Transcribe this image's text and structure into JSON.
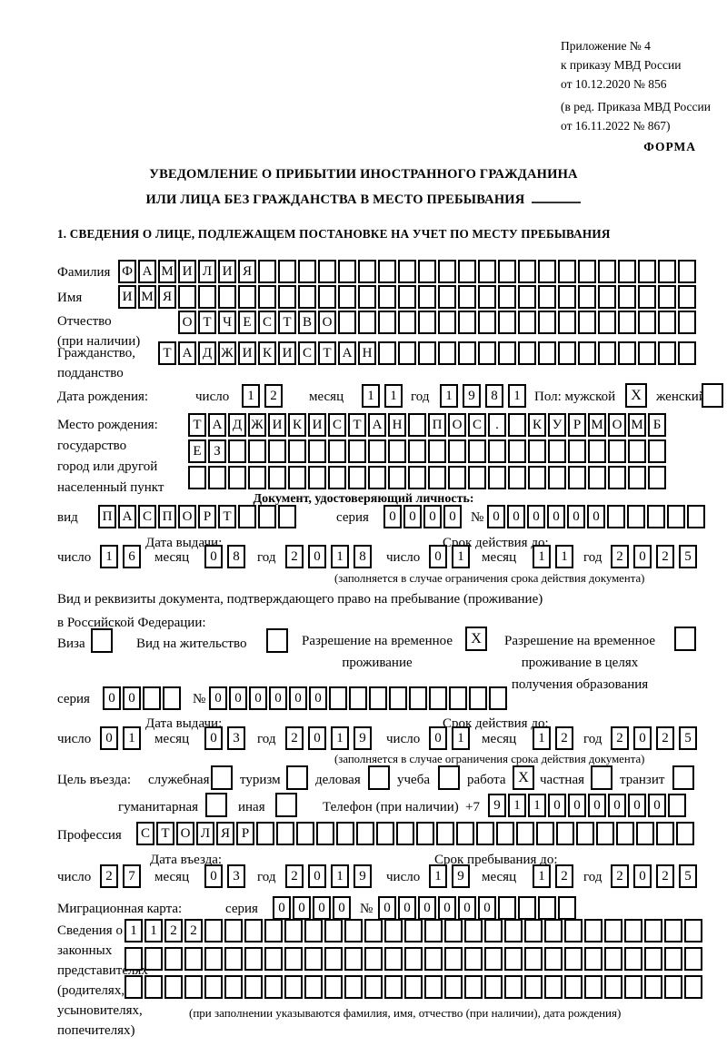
{
  "doc": {
    "appendix": [
      "Приложение № 4",
      "к приказу МВД России",
      "от 10.12.2020 № 856"
    ],
    "revision": [
      "(в ред. Приказа МВД России",
      "от 16.11.2022 № 867)"
    ],
    "forma": "ФОРМА",
    "title1": "УВЕДОМЛЕНИЕ О ПРИБЫТИИ ИНОСТРАННОГО ГРАЖДАНИНА",
    "title2": "ИЛИ ЛИЦА БЕЗ ГРАЖДАНСТВА В МЕСТО ПРЕБЫВАНИЯ",
    "section1": "1. СВЕДЕНИЯ О ЛИЦЕ, ПОДЛЕЖАЩЕМ ПОСТАНОВКЕ НА УЧЕТ ПО МЕСТУ ПРЕБЫВАНИЯ"
  },
  "labels": {
    "day": "число",
    "month": "месяц",
    "year": "год",
    "series": "серия",
    "number": "№",
    "issue_date": "Дата выдачи:",
    "valid_until": "Срок действия до:",
    "entry_date": "Дата въезда:",
    "stay_until": "Срок пребывания до:",
    "valid_note": "(заполняется в случае ограничения срока действия документа)"
  },
  "fields": {
    "surname": {
      "label": "Фамилия",
      "value": "ФАМИЛИЯ"
    },
    "firstname": {
      "label": "Имя",
      "value": "ИМЯ"
    },
    "patronymic": {
      "label1": "Отчество",
      "label2": "(при наличии)",
      "value": "ОТЧЕСТВО"
    },
    "citizenship": {
      "label1": "Гражданство,",
      "label2": "подданство",
      "value": "ТАДЖИКИСТАН"
    },
    "birth": {
      "label": "Дата рождения:",
      "day": "12",
      "month": "11",
      "year": "1981",
      "sex_label": "Пол: мужской",
      "male_mark": "X",
      "female_label": "женский",
      "female_mark": ""
    },
    "birthplace": {
      "label1": "Место рождения:",
      "label2": "государство",
      "label3": "город или другой",
      "label4": "населенный пункт",
      "row1": "ТАДЖИКИСТАН ПОС. КУРМОМБ",
      "row2": "ЕЗ",
      "row3": ""
    },
    "iddoc": {
      "heading": "Документ, удостоверяющий личность:",
      "kind_label": "вид",
      "kind": "ПАСПОРТ",
      "series": "0000",
      "number": "000000",
      "issue": {
        "day": "16",
        "month": "08",
        "year": "2018"
      },
      "valid": {
        "day": "01",
        "month": "11",
        "year": "2025"
      }
    },
    "staydoc": {
      "intro1": "Вид и реквизиты документа, подтверждающего право на пребывание (проживание)",
      "intro2": "в Российской Федерации:",
      "options": [
        {
          "lines": [
            "Виза"
          ],
          "mark": ""
        },
        {
          "lines": [
            "Вид на жительство"
          ],
          "mark": ""
        },
        {
          "lines": [
            "Разрешение на временное",
            "проживание"
          ],
          "mark": "X"
        },
        {
          "lines": [
            "Разрешение на временное",
            "проживание в целях",
            "получения образования"
          ],
          "mark": ""
        }
      ],
      "series": "00",
      "number": "000000",
      "issue": {
        "day": "01",
        "month": "03",
        "year": "2019"
      },
      "valid": {
        "day": "01",
        "month": "12",
        "year": "2025"
      }
    },
    "purpose": {
      "label": "Цель въезда:",
      "options": [
        {
          "label": "служебная",
          "mark": ""
        },
        {
          "label": "туризм",
          "mark": ""
        },
        {
          "label": "деловая",
          "mark": ""
        },
        {
          "label": "учеба",
          "mark": ""
        },
        {
          "label": "работа",
          "mark": "X"
        },
        {
          "label": "частная",
          "mark": ""
        },
        {
          "label": "транзит",
          "mark": ""
        },
        {
          "label": "гуманитарная",
          "mark": ""
        },
        {
          "label": "иная",
          "mark": ""
        }
      ],
      "phone_label": "Телефон (при наличии)",
      "phone_prefix": "+7",
      "phone": "911000000"
    },
    "profession": {
      "label": "Профессия",
      "value": "СТОЛЯР"
    },
    "entry": {
      "date": {
        "day": "27",
        "month": "03",
        "year": "2019"
      },
      "until": {
        "day": "19",
        "month": "12",
        "year": "2025"
      }
    },
    "migration": {
      "label": "Миграционная карта:",
      "series": "0000",
      "number": "000000"
    },
    "reps": {
      "label1": "Сведения о",
      "label2": "законных",
      "label3": "представителях",
      "label4": "(родителях,",
      "label5": "усыновителях,",
      "label6": "попечителях)",
      "row1": "1122",
      "row2": "",
      "row3": "",
      "note": "(при заполнении указываются фамилия, имя, отчество (при наличии), дата рождения)"
    }
  }
}
